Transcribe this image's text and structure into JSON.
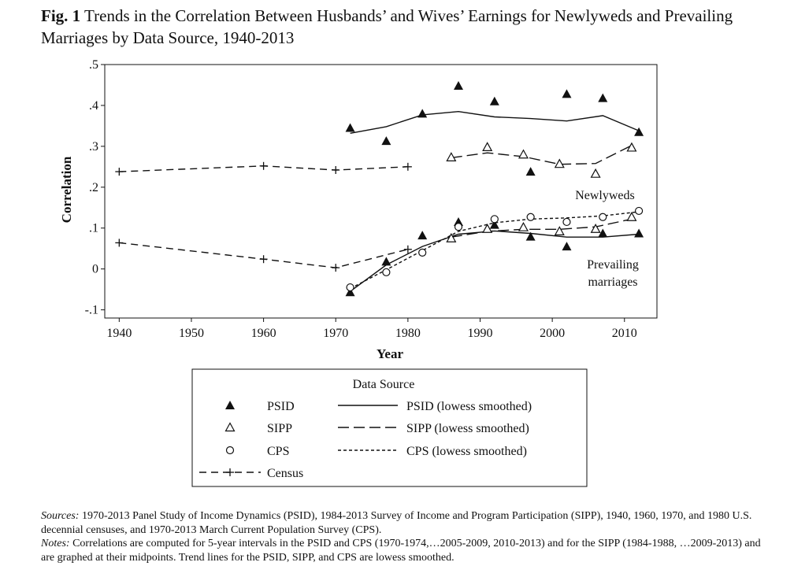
{
  "figure": {
    "label": "Fig. 1",
    "title": "Trends in the Correlation Between Husbands’ and Wives’ Earnings for Newlyweds and Prevailing Marriages by Data Source, 1940-2013"
  },
  "chart_data": {
    "type": "scatter",
    "xlabel": "Year",
    "ylabel": "Correlation",
    "xlim": [
      1940,
      2013
    ],
    "ylim": [
      -0.1,
      0.5
    ],
    "x_ticks": [
      "1940",
      "1950",
      "1960",
      "1970",
      "1980",
      "1990",
      "2000",
      "2010"
    ],
    "y_ticks": [
      "-.1",
      "0",
      ".1",
      ".2",
      ".3",
      ".4",
      ".5"
    ],
    "annotations": {
      "newlyweds": "Newlyweds",
      "prevailing_line1": "Prevailing",
      "prevailing_line2": "marriages"
    },
    "legend": {
      "title": "Data Source",
      "placement": "bottom",
      "entries": {
        "psid": "PSID",
        "sipp": "SIPP",
        "cps": "CPS",
        "census": "Census",
        "psid_smooth": "PSID (lowess smoothed)",
        "sipp_smooth": "SIPP (lowess smoothed)",
        "cps_smooth": "CPS (lowess smoothed)"
      }
    },
    "series": [
      {
        "key": "psid_newlyweds",
        "marker": "filled-triangle",
        "points": [
          [
            1972,
            0.345
          ],
          [
            1977,
            0.313
          ],
          [
            1982,
            0.38
          ],
          [
            1987,
            0.448
          ],
          [
            1992,
            0.41
          ],
          [
            2002,
            0.428
          ],
          [
            2007,
            0.418
          ],
          [
            2012,
            0.335
          ]
        ]
      },
      {
        "key": "psid_newlyweds_lowess",
        "line": "solid",
        "points": [
          [
            1972,
            0.332
          ],
          [
            1977,
            0.348
          ],
          [
            1982,
            0.377
          ],
          [
            1987,
            0.385
          ],
          [
            1992,
            0.372
          ],
          [
            1997,
            0.368
          ],
          [
            2002,
            0.362
          ],
          [
            2007,
            0.375
          ],
          [
            2012,
            0.338
          ]
        ]
      },
      {
        "key": "sipp_newlyweds",
        "marker": "open-triangle",
        "points": [
          [
            1986,
            0.273
          ],
          [
            1991,
            0.298
          ],
          [
            1996,
            0.28
          ],
          [
            2001,
            0.257
          ],
          [
            2006,
            0.233
          ],
          [
            2011,
            0.297
          ]
        ]
      },
      {
        "key": "sipp_newlyweds_lowess",
        "line": "long-dash",
        "points": [
          [
            1986,
            0.272
          ],
          [
            1991,
            0.284
          ],
          [
            1996,
            0.275
          ],
          [
            2001,
            0.256
          ],
          [
            2006,
            0.258
          ],
          [
            2011,
            0.302
          ]
        ]
      },
      {
        "key": "psid_newlyweds_extra",
        "marker": "filled-triangle",
        "points": [
          [
            1997,
            0.238
          ]
        ]
      },
      {
        "key": "census_newlyweds",
        "marker": "plus",
        "line": "dash",
        "points": [
          [
            1940,
            0.238
          ],
          [
            1960,
            0.252
          ],
          [
            1970,
            0.242
          ],
          [
            1980,
            0.25
          ]
        ]
      },
      {
        "key": "census_prevailing",
        "marker": "plus",
        "line": "dash",
        "points": [
          [
            1940,
            0.064
          ],
          [
            1960,
            0.024
          ],
          [
            1970,
            0.003
          ],
          [
            1980,
            0.048
          ]
        ]
      },
      {
        "key": "psid_prevailing",
        "marker": "filled-triangle",
        "points": [
          [
            1972,
            -0.057
          ],
          [
            1977,
            0.018
          ],
          [
            1982,
            0.082
          ],
          [
            1987,
            0.115
          ],
          [
            1992,
            0.108
          ],
          [
            1997,
            0.079
          ],
          [
            2002,
            0.055
          ],
          [
            2007,
            0.087
          ],
          [
            2012,
            0.087
          ]
        ]
      },
      {
        "key": "psid_prevailing_lowess",
        "line": "solid",
        "points": [
          [
            1972,
            -0.055
          ],
          [
            1977,
            0.01
          ],
          [
            1982,
            0.055
          ],
          [
            1987,
            0.085
          ],
          [
            1992,
            0.093
          ],
          [
            1997,
            0.087
          ],
          [
            2002,
            0.078
          ],
          [
            2007,
            0.078
          ],
          [
            2012,
            0.085
          ]
        ]
      },
      {
        "key": "sipp_prevailing",
        "marker": "open-triangle",
        "points": [
          [
            1986,
            0.075
          ],
          [
            1991,
            0.098
          ],
          [
            1996,
            0.102
          ],
          [
            2001,
            0.092
          ],
          [
            2006,
            0.098
          ],
          [
            2011,
            0.127
          ]
        ]
      },
      {
        "key": "sipp_prevailing_lowess",
        "line": "long-dash",
        "points": [
          [
            1986,
            0.078
          ],
          [
            1991,
            0.092
          ],
          [
            1996,
            0.097
          ],
          [
            2001,
            0.097
          ],
          [
            2006,
            0.103
          ],
          [
            2011,
            0.122
          ]
        ]
      },
      {
        "key": "cps_prevailing",
        "marker": "open-circle",
        "points": [
          [
            1972,
            -0.045
          ],
          [
            1977,
            -0.008
          ],
          [
            1982,
            0.04
          ],
          [
            1987,
            0.103
          ],
          [
            1992,
            0.122
          ],
          [
            1997,
            0.127
          ],
          [
            2002,
            0.115
          ],
          [
            2007,
            0.127
          ],
          [
            2012,
            0.142
          ]
        ]
      },
      {
        "key": "cps_prevailing_lowess",
        "line": "short-dash",
        "points": [
          [
            1972,
            -0.048
          ],
          [
            1977,
            -0.002
          ],
          [
            1982,
            0.045
          ],
          [
            1987,
            0.092
          ],
          [
            1992,
            0.113
          ],
          [
            1997,
            0.122
          ],
          [
            2002,
            0.125
          ],
          [
            2007,
            0.13
          ],
          [
            2012,
            0.14
          ]
        ]
      }
    ]
  },
  "notes": {
    "sources_label": "Sources:",
    "sources_text": "1970-2013 Panel Study of Income Dynamics (PSID), 1984-2013 Survey of Income and Program Participation (SIPP), 1940, 1960, 1970, and 1980 U.S. decennial censuses, and 1970-2013 March Current Population Survey (CPS).",
    "notes_label": "Notes:",
    "notes_text": "Correlations are computed for 5-year intervals in the PSID and CPS (1970-1974,…2005-2009, 2010-2013) and for the SIPP (1984-1988, …2009-2013) and are graphed at their midpoints. Trend lines for the PSID, SIPP, and CPS are lowess smoothed."
  }
}
